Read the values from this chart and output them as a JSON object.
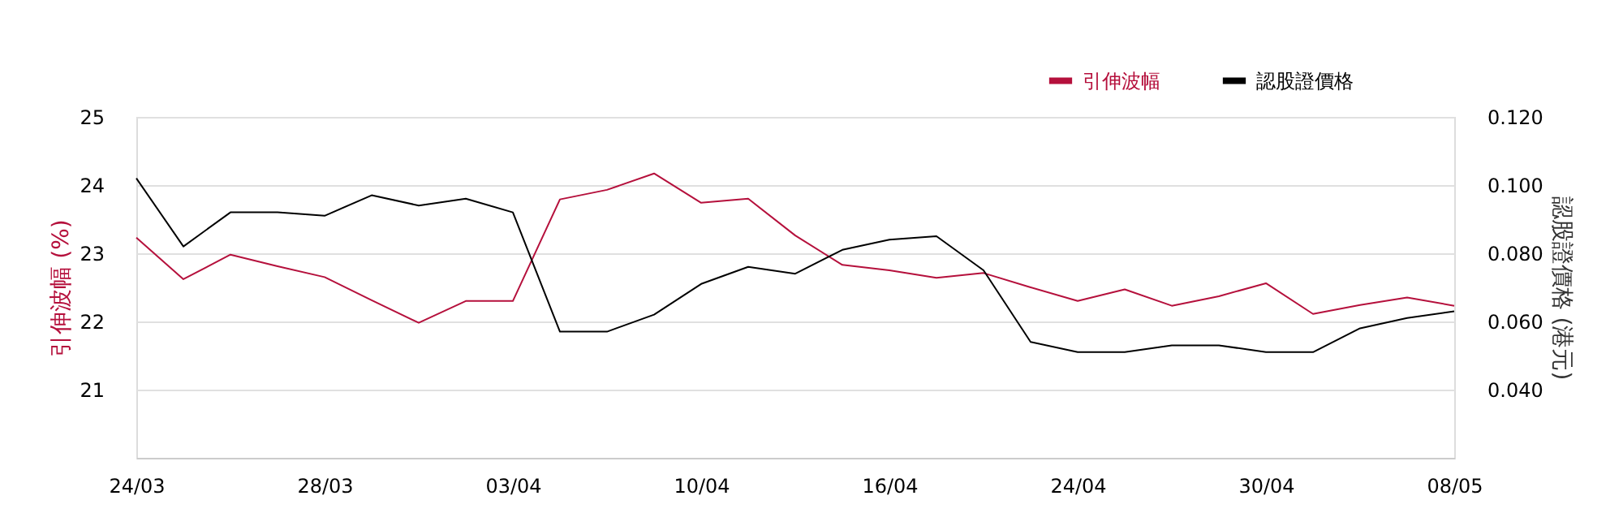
{
  "chart_data": {
    "type": "line",
    "categories": [
      "24/03",
      null,
      null,
      null,
      "28/03",
      null,
      null,
      null,
      "03/04",
      null,
      null,
      null,
      "10/04",
      null,
      null,
      null,
      "16/04",
      null,
      null,
      null,
      "24/04",
      null,
      null,
      null,
      "30/04",
      null,
      null,
      null,
      "08/05"
    ],
    "series": [
      {
        "name": "引伸波幅",
        "color": "#b5103c",
        "values": [
          23.23,
          22.62,
          22.98,
          22.81,
          22.65,
          22.31,
          21.98,
          22.3,
          22.3,
          23.79,
          23.93,
          24.17,
          23.74,
          23.8,
          23.26,
          22.83,
          22.75,
          22.64,
          22.71,
          22.5,
          22.3,
          22.47,
          22.23,
          22.37,
          22.56,
          22.11,
          22.24,
          22.35,
          22.23
        ]
      },
      {
        "name": "認股證價格",
        "color": "#000000",
        "axis": "y2",
        "values": [
          0.102,
          0.082,
          0.092,
          0.092,
          0.091,
          0.097,
          0.094,
          0.096,
          0.092,
          0.057,
          0.057,
          0.062,
          0.071,
          0.076,
          0.074,
          0.081,
          0.084,
          0.085,
          0.075,
          0.054,
          0.051,
          0.051,
          0.053,
          0.053,
          0.051,
          0.051,
          0.058,
          0.061,
          0.063
        ]
      }
    ],
    "ylabel": "引伸波幅 (%)",
    "y2label": "認股證價格 (港元)",
    "ylim": [
      20,
      25
    ],
    "yticks": [
      21,
      22,
      23,
      24,
      25
    ],
    "y2lim": [
      0.02,
      0.12
    ],
    "y2ticks": [
      {
        "value": 0.04,
        "label": "0.040"
      },
      {
        "value": 0.06,
        "label": "0.060"
      },
      {
        "value": 0.08,
        "label": "0.080"
      },
      {
        "value": 0.1,
        "label": "0.100"
      },
      {
        "value": 0.12,
        "label": "0.120"
      }
    ],
    "grid": "y",
    "legend": "top right",
    "line_style": "solid",
    "marker": "none"
  }
}
